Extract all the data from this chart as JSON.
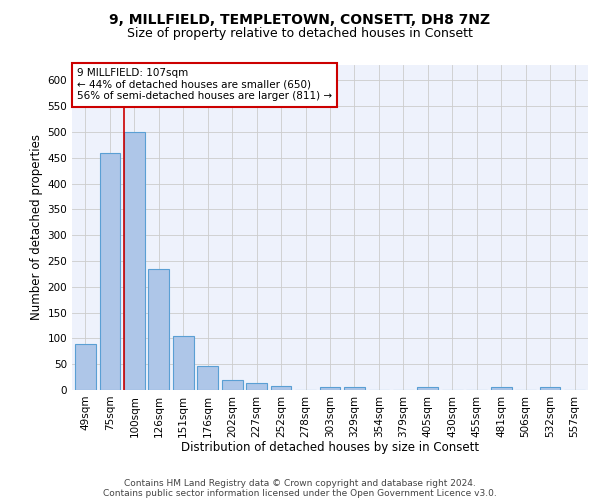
{
  "title": "9, MILLFIELD, TEMPLETOWN, CONSETT, DH8 7NZ",
  "subtitle": "Size of property relative to detached houses in Consett",
  "xlabel": "Distribution of detached houses by size in Consett",
  "ylabel": "Number of detached properties",
  "footer_line1": "Contains HM Land Registry data © Crown copyright and database right 2024.",
  "footer_line2": "Contains public sector information licensed under the Open Government Licence v3.0.",
  "annotation_line1": "9 MILLFIELD: 107sqm",
  "annotation_line2": "← 44% of detached houses are smaller (650)",
  "annotation_line3": "56% of semi-detached houses are larger (811) →",
  "bar_labels": [
    "49sqm",
    "75sqm",
    "100sqm",
    "126sqm",
    "151sqm",
    "176sqm",
    "202sqm",
    "227sqm",
    "252sqm",
    "278sqm",
    "303sqm",
    "329sqm",
    "354sqm",
    "379sqm",
    "405sqm",
    "430sqm",
    "455sqm",
    "481sqm",
    "506sqm",
    "532sqm",
    "557sqm"
  ],
  "bar_values": [
    90,
    460,
    500,
    235,
    105,
    47,
    20,
    14,
    8,
    0,
    5,
    5,
    0,
    0,
    5,
    0,
    0,
    5,
    0,
    5,
    0
  ],
  "bar_color": "#aec6e8",
  "bar_edge_color": "#5a9fd4",
  "bar_edge_width": 0.8,
  "bg_color": "#eef2fc",
  "grid_color": "#cccccc",
  "vline_color": "#cc0000",
  "vline_x_index": 2,
  "ylim": [
    0,
    630
  ],
  "yticks": [
    0,
    50,
    100,
    150,
    200,
    250,
    300,
    350,
    400,
    450,
    500,
    550,
    600
  ],
  "annotation_box_color": "#ffffff",
  "annotation_box_edge": "#cc0000",
  "title_fontsize": 10,
  "subtitle_fontsize": 9,
  "axis_label_fontsize": 8.5,
  "tick_fontsize": 7.5,
  "annotation_fontsize": 7.5,
  "footer_fontsize": 6.5
}
